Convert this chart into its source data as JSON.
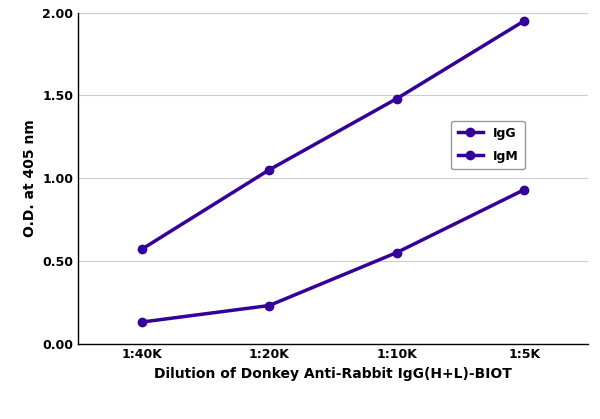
{
  "x_labels": [
    "1:40K",
    "1:20K",
    "1:10K",
    "1:5K"
  ],
  "x_positions": [
    1,
    2,
    3,
    4
  ],
  "IgG_values": [
    0.57,
    1.05,
    1.48,
    1.95
  ],
  "IgM_values": [
    0.13,
    0.23,
    0.55,
    0.93
  ],
  "line_color": "#330099",
  "marker_style": "o",
  "marker_size": 6,
  "line_width": 2.5,
  "ylabel": "O.D. at 405 nm",
  "xlabel": "Dilution of Donkey Anti-Rabbit IgG(H+L)-BIOT",
  "ylim": [
    0.0,
    2.0
  ],
  "yticks": [
    0.0,
    0.5,
    1.0,
    1.5,
    2.0
  ],
  "legend_labels": [
    "IgG",
    "IgM"
  ],
  "axis_label_fontsize": 10,
  "tick_fontsize": 9,
  "legend_fontsize": 9,
  "background_color": "#ffffff",
  "grid_color": "#cccccc"
}
